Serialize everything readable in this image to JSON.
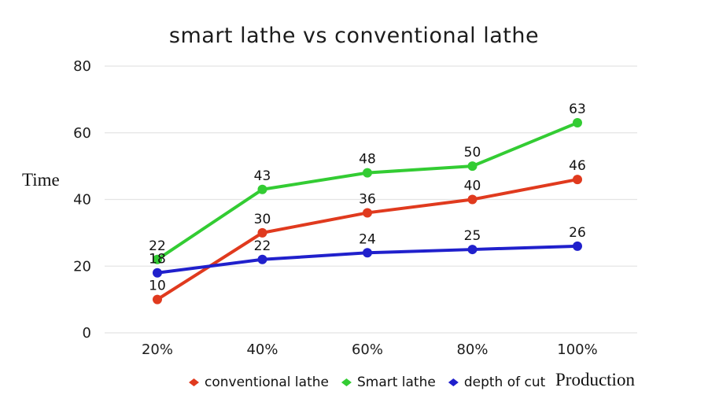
{
  "title": "smart lathe vs conventional lathe",
  "chart_data": {
    "type": "line",
    "title": "smart lathe vs conventional lathe",
    "xlabel": "Production",
    "ylabel": "Time",
    "categories": [
      "20%",
      "40%",
      "60%",
      "80%",
      "100%"
    ],
    "yticks": [
      0,
      20,
      40,
      60,
      80
    ],
    "ylim": [
      0,
      80
    ],
    "grid": "horizontal-only",
    "legend_position": "bottom",
    "series": [
      {
        "name": "conventional lathe",
        "color": "#e03a1e",
        "values": [
          10,
          30,
          36,
          40,
          46
        ]
      },
      {
        "name": "Smart lathe",
        "color": "#33cc33",
        "values": [
          22,
          43,
          48,
          50,
          63
        ]
      },
      {
        "name": "depth of cut",
        "color": "#2020cc",
        "values": [
          18,
          22,
          24,
          25,
          26
        ]
      }
    ],
    "point_labels_shown": true
  },
  "colors": {
    "background": "#ffffff",
    "gridline": "#e4e4e4",
    "tick_text": "#1c1c1c",
    "data_label_text": "#111111"
  }
}
